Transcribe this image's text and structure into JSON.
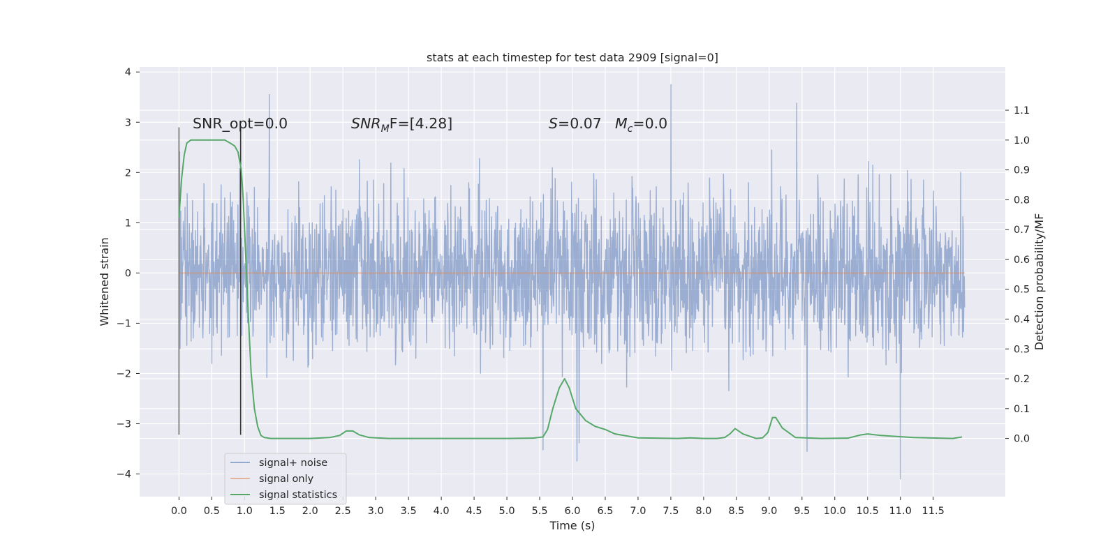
{
  "chart_data": {
    "type": "line",
    "title": "stats at each timestep for test data 2909 [signal=0]",
    "xlabel": "Time (s)",
    "ylabel": "Whitened strain",
    "y2label": "Detection probability/MF",
    "xlim": [
      -0.6,
      12.6
    ],
    "ylim": [
      -4.45,
      4.1
    ],
    "y2lim": [
      -0.195,
      1.245
    ],
    "grid": true,
    "legend_position": "lower-left",
    "x_ticks": [
      "0.0",
      "0.5",
      "1.0",
      "1.5",
      "2.0",
      "2.5",
      "3.0",
      "3.5",
      "4.0",
      "4.5",
      "5.0",
      "5.5",
      "6.0",
      "6.5",
      "7.0",
      "7.5",
      "8.0",
      "8.5",
      "9.0",
      "9.5",
      "10.0",
      "10.5",
      "11.0",
      "11.5"
    ],
    "y_ticks": [
      "4",
      "3",
      "2",
      "1",
      "0",
      "−1",
      "−2",
      "−3",
      "−4"
    ],
    "y2_ticks": [
      "1.1",
      "1.0",
      "0.9",
      "0.8",
      "0.7",
      "0.6",
      "0.5",
      "0.4",
      "0.3",
      "0.2",
      "0.1",
      "0.0"
    ],
    "annotations": {
      "snr_opt": "SNR_opt=0.0",
      "snr_mf_sym": "SNR",
      "snr_mf_sub": "M",
      "snr_mf_rest": "F=[4.28]",
      "s_sym": "S",
      "s_rest": "=0.07",
      "mc_sym": "M",
      "mc_sub": "c",
      "mc_rest": "=0.0"
    },
    "series": [
      {
        "name": "signal+ noise",
        "color": "#4c72b0",
        "t_range": [
          0.0,
          11.98
        ],
        "envelope_min": -4.1,
        "envelope_max": 3.75,
        "notable_peaks": [
          [
            1.38,
            3.55
          ],
          [
            7.5,
            3.75
          ],
          [
            9.42,
            3.38
          ],
          [
            11.0,
            -4.1
          ],
          [
            5.55,
            -3.52
          ],
          [
            6.1,
            -3.38
          ],
          [
            9.58,
            -3.55
          ]
        ]
      },
      {
        "name": "signal only",
        "color": "#dd8452",
        "x": [
          0.0,
          11.98
        ],
        "y": [
          0.0,
          0.0
        ]
      },
      {
        "name": "signal statistics",
        "color": "#55a868",
        "axis": "right",
        "x": [
          0.0,
          0.04,
          0.08,
          0.12,
          0.18,
          0.3,
          0.45,
          0.6,
          0.7,
          0.78,
          0.85,
          0.9,
          0.95,
          0.98,
          1.0,
          1.03,
          1.06,
          1.1,
          1.15,
          1.2,
          1.25,
          1.3,
          1.4,
          1.6,
          2.0,
          2.3,
          2.45,
          2.55,
          2.65,
          2.75,
          2.9,
          3.2,
          4.0,
          5.0,
          5.4,
          5.55,
          5.62,
          5.7,
          5.8,
          5.88,
          5.95,
          6.05,
          6.2,
          6.35,
          6.5,
          6.65,
          7.0,
          7.6,
          7.8,
          8.0,
          8.2,
          8.32,
          8.4,
          8.48,
          8.6,
          8.8,
          8.9,
          8.98,
          9.05,
          9.1,
          9.2,
          9.4,
          9.8,
          10.2,
          10.4,
          10.5,
          10.7,
          11.2,
          11.8,
          11.94
        ],
        "y": [
          0.74,
          0.87,
          0.95,
          0.99,
          1.0,
          1.0,
          1.0,
          1.0,
          1.0,
          0.99,
          0.98,
          0.96,
          0.9,
          0.8,
          0.7,
          0.55,
          0.4,
          0.22,
          0.1,
          0.04,
          0.01,
          0.003,
          0.0,
          0.0,
          0.0,
          0.003,
          0.01,
          0.025,
          0.025,
          0.012,
          0.003,
          0.0,
          0.0,
          0.0,
          0.001,
          0.005,
          0.03,
          0.1,
          0.17,
          0.2,
          0.17,
          0.1,
          0.06,
          0.04,
          0.03,
          0.015,
          0.002,
          0.0,
          0.002,
          0.0,
          0.0,
          0.003,
          0.015,
          0.033,
          0.015,
          0.0,
          0.002,
          0.02,
          0.07,
          0.07,
          0.035,
          0.003,
          0.0,
          0.001,
          0.012,
          0.015,
          0.01,
          0.003,
          0.0,
          0.005
        ]
      }
    ],
    "vlines": [
      {
        "color": "#707070",
        "x": 0.0,
        "ymin": -3.22,
        "ymax": 2.9
      },
      {
        "color": "#3a3a3a",
        "x": 0.94,
        "ymin": -3.22,
        "ymax": 2.9
      }
    ]
  }
}
